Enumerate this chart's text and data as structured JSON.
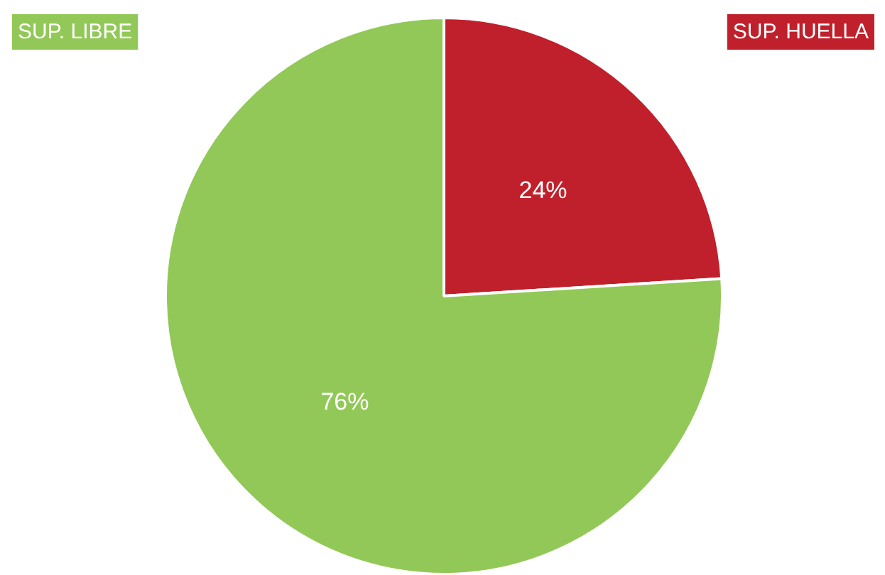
{
  "chart_data": {
    "type": "pie",
    "categories": [
      "SUP. HUELLA",
      "SUP. LIBRE"
    ],
    "values": [
      24,
      76
    ],
    "colors": [
      "#c0202b",
      "#92c857"
    ],
    "value_labels": [
      "24%",
      "76%"
    ]
  }
}
